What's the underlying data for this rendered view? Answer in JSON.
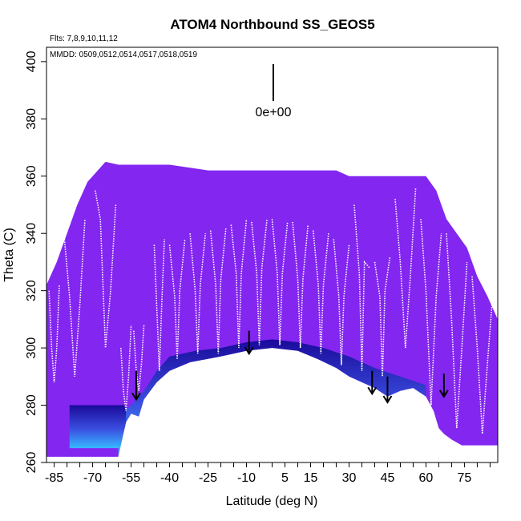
{
  "chart_data": {
    "type": "heatmap",
    "title": "ATOM4 Northbound SS_GEOS5",
    "flights_note": "Flts: 7,8,9,10,11,12",
    "dates_note": "MMDD: 0509,0512,0514,0517,0518,0519",
    "scale_label": "0e+00",
    "xlabel": "Latitude (deg N)",
    "ylabel": "Theta (C)",
    "xlim": [
      -88,
      88
    ],
    "ylim": [
      260,
      405
    ],
    "x_ticks": [
      -85,
      -70,
      -55,
      -40,
      -25,
      -10,
      5,
      15,
      30,
      45,
      60,
      75
    ],
    "x_tick_labels": [
      "-85",
      "-70",
      "-55",
      "-40",
      "-25",
      "-10",
      "5",
      "15",
      "30",
      "45",
      "60",
      "75"
    ],
    "y_ticks": [
      260,
      280,
      300,
      320,
      340,
      360,
      380,
      400
    ],
    "y_tick_labels": [
      "260",
      "280",
      "300",
      "320",
      "340",
      "360",
      "380",
      "400"
    ],
    "colors": {
      "background_field": "#8326f0",
      "deep": "#1a0a9a",
      "mid": "#3a4ee0",
      "bright": "#38b8ff",
      "trace": "#ffffff"
    },
    "coverage_top": [
      [
        -88,
        322
      ],
      [
        -84,
        330
      ],
      [
        -80,
        340
      ],
      [
        -76,
        350
      ],
      [
        -72,
        358
      ],
      [
        -68,
        362
      ],
      [
        -65,
        365
      ],
      [
        -60,
        364
      ],
      [
        -40,
        364
      ],
      [
        -25,
        362
      ],
      [
        -10,
        362
      ],
      [
        5,
        362
      ],
      [
        25,
        362
      ],
      [
        30,
        360
      ],
      [
        60,
        360
      ],
      [
        64,
        355
      ],
      [
        68,
        345
      ],
      [
        72,
        340
      ],
      [
        76,
        335
      ],
      [
        80,
        325
      ],
      [
        84,
        318
      ],
      [
        88,
        310
      ]
    ],
    "surface": [
      [
        -88,
        262
      ],
      [
        -60,
        262
      ],
      [
        -57,
        274
      ],
      [
        -55,
        277
      ],
      [
        -52,
        276
      ],
      [
        -50,
        282
      ],
      [
        -45,
        288
      ],
      [
        -40,
        292
      ],
      [
        -32,
        295
      ],
      [
        -20,
        297
      ],
      [
        -10,
        299
      ],
      [
        0,
        300
      ],
      [
        10,
        299
      ],
      [
        18,
        296
      ],
      [
        25,
        293
      ],
      [
        30,
        290
      ],
      [
        35,
        288
      ],
      [
        40,
        286
      ],
      [
        45,
        283
      ],
      [
        50,
        285
      ],
      [
        55,
        286
      ],
      [
        60,
        283
      ],
      [
        63,
        278
      ],
      [
        65,
        272
      ],
      [
        67,
        270
      ],
      [
        70,
        268
      ],
      [
        74,
        266
      ],
      [
        88,
        266
      ]
    ],
    "enhanced_layer": [
      [
        -60,
        276
      ],
      [
        -55,
        280
      ],
      [
        -50,
        285
      ],
      [
        -45,
        292
      ],
      [
        -40,
        297
      ],
      [
        -30,
        299
      ],
      [
        -20,
        300
      ],
      [
        -10,
        302
      ],
      [
        0,
        303
      ],
      [
        10,
        302
      ],
      [
        20,
        300
      ],
      [
        30,
        297
      ],
      [
        40,
        293
      ],
      [
        50,
        290
      ],
      [
        60,
        287
      ]
    ],
    "polar_block": {
      "x0": -79,
      "x1": -57,
      "y0": 265,
      "y1": 280
    },
    "profiles": [
      {
        "x": [
          -87,
          -86,
          -85,
          -84,
          -83
        ],
        "y": [
          320,
          300,
          288,
          300,
          322
        ]
      },
      {
        "x": [
          -81,
          -79,
          -77,
          -75,
          -73
        ],
        "y": [
          338,
          318,
          290,
          315,
          345
        ]
      },
      {
        "x": [
          -69,
          -67,
          -65,
          -63,
          -61
        ],
        "y": [
          355,
          345,
          300,
          320,
          350
        ]
      },
      {
        "x": [
          -59,
          -58,
          -57,
          -56,
          -55
        ],
        "y": [
          300,
          285,
          278,
          290,
          308
        ]
      },
      {
        "x": [
          -54,
          -53,
          -52,
          -51,
          -50
        ],
        "y": [
          306,
          292,
          285,
          294,
          308
        ]
      },
      {
        "x": [
          -46,
          -45,
          -44,
          -43,
          -42
        ],
        "y": [
          336,
          314,
          292,
          316,
          338
        ]
      },
      {
        "x": [
          -40,
          -38,
          -37,
          -36,
          -34
        ],
        "y": [
          336,
          318,
          296,
          320,
          338
        ]
      },
      {
        "x": [
          -32,
          -30,
          -29,
          -28,
          -26
        ],
        "y": [
          340,
          320,
          298,
          322,
          340
        ]
      },
      {
        "x": [
          -24,
          -22,
          -21,
          -20,
          -18
        ],
        "y": [
          341,
          322,
          298,
          324,
          342
        ]
      },
      {
        "x": [
          -16,
          -14,
          -13,
          -12,
          -10
        ],
        "y": [
          343,
          326,
          300,
          326,
          345
        ]
      },
      {
        "x": [
          -8,
          -6,
          -5,
          -4,
          -2
        ],
        "y": [
          344,
          326,
          301,
          328,
          345
        ]
      },
      {
        "x": [
          0,
          2,
          3,
          4,
          6
        ],
        "y": [
          345,
          326,
          301,
          326,
          344
        ]
      },
      {
        "x": [
          8,
          10,
          11,
          12,
          14
        ],
        "y": [
          344,
          324,
          300,
          324,
          343
        ]
      },
      {
        "x": [
          16,
          18,
          19,
          20,
          22
        ],
        "y": [
          341,
          322,
          298,
          322,
          340
        ]
      },
      {
        "x": [
          24,
          26,
          27,
          28,
          30
        ],
        "y": [
          338,
          318,
          294,
          318,
          336
        ]
      },
      {
        "x": [
          32,
          34,
          35,
          36,
          38
        ],
        "y": [
          350,
          326,
          292,
          330,
          328
        ]
      },
      {
        "x": [
          40,
          42,
          43,
          44,
          46
        ],
        "y": [
          330,
          318,
          290,
          320,
          332
        ]
      },
      {
        "x": [
          48,
          50,
          52,
          54,
          56
        ],
        "y": [
          352,
          330,
          300,
          326,
          356
        ]
      },
      {
        "x": [
          58,
          60,
          62,
          64,
          66
        ],
        "y": [
          345,
          320,
          280,
          318,
          340
        ]
      },
      {
        "x": [
          68,
          70,
          72,
          74,
          76
        ],
        "y": [
          340,
          310,
          272,
          300,
          330
        ]
      },
      {
        "x": [
          78,
          80,
          82,
          84,
          86
        ],
        "y": [
          325,
          300,
          270,
          295,
          318
        ]
      }
    ],
    "arrows": [
      {
        "x": -53,
        "y_top": 292,
        "y_tip": 282
      },
      {
        "x": -9,
        "y_top": 306,
        "y_tip": 298
      },
      {
        "x": 39,
        "y_top": 292,
        "y_tip": 284
      },
      {
        "x": 45,
        "y_top": 290,
        "y_tip": 281
      },
      {
        "x": 67,
        "y_top": 291,
        "y_tip": 283
      }
    ]
  }
}
